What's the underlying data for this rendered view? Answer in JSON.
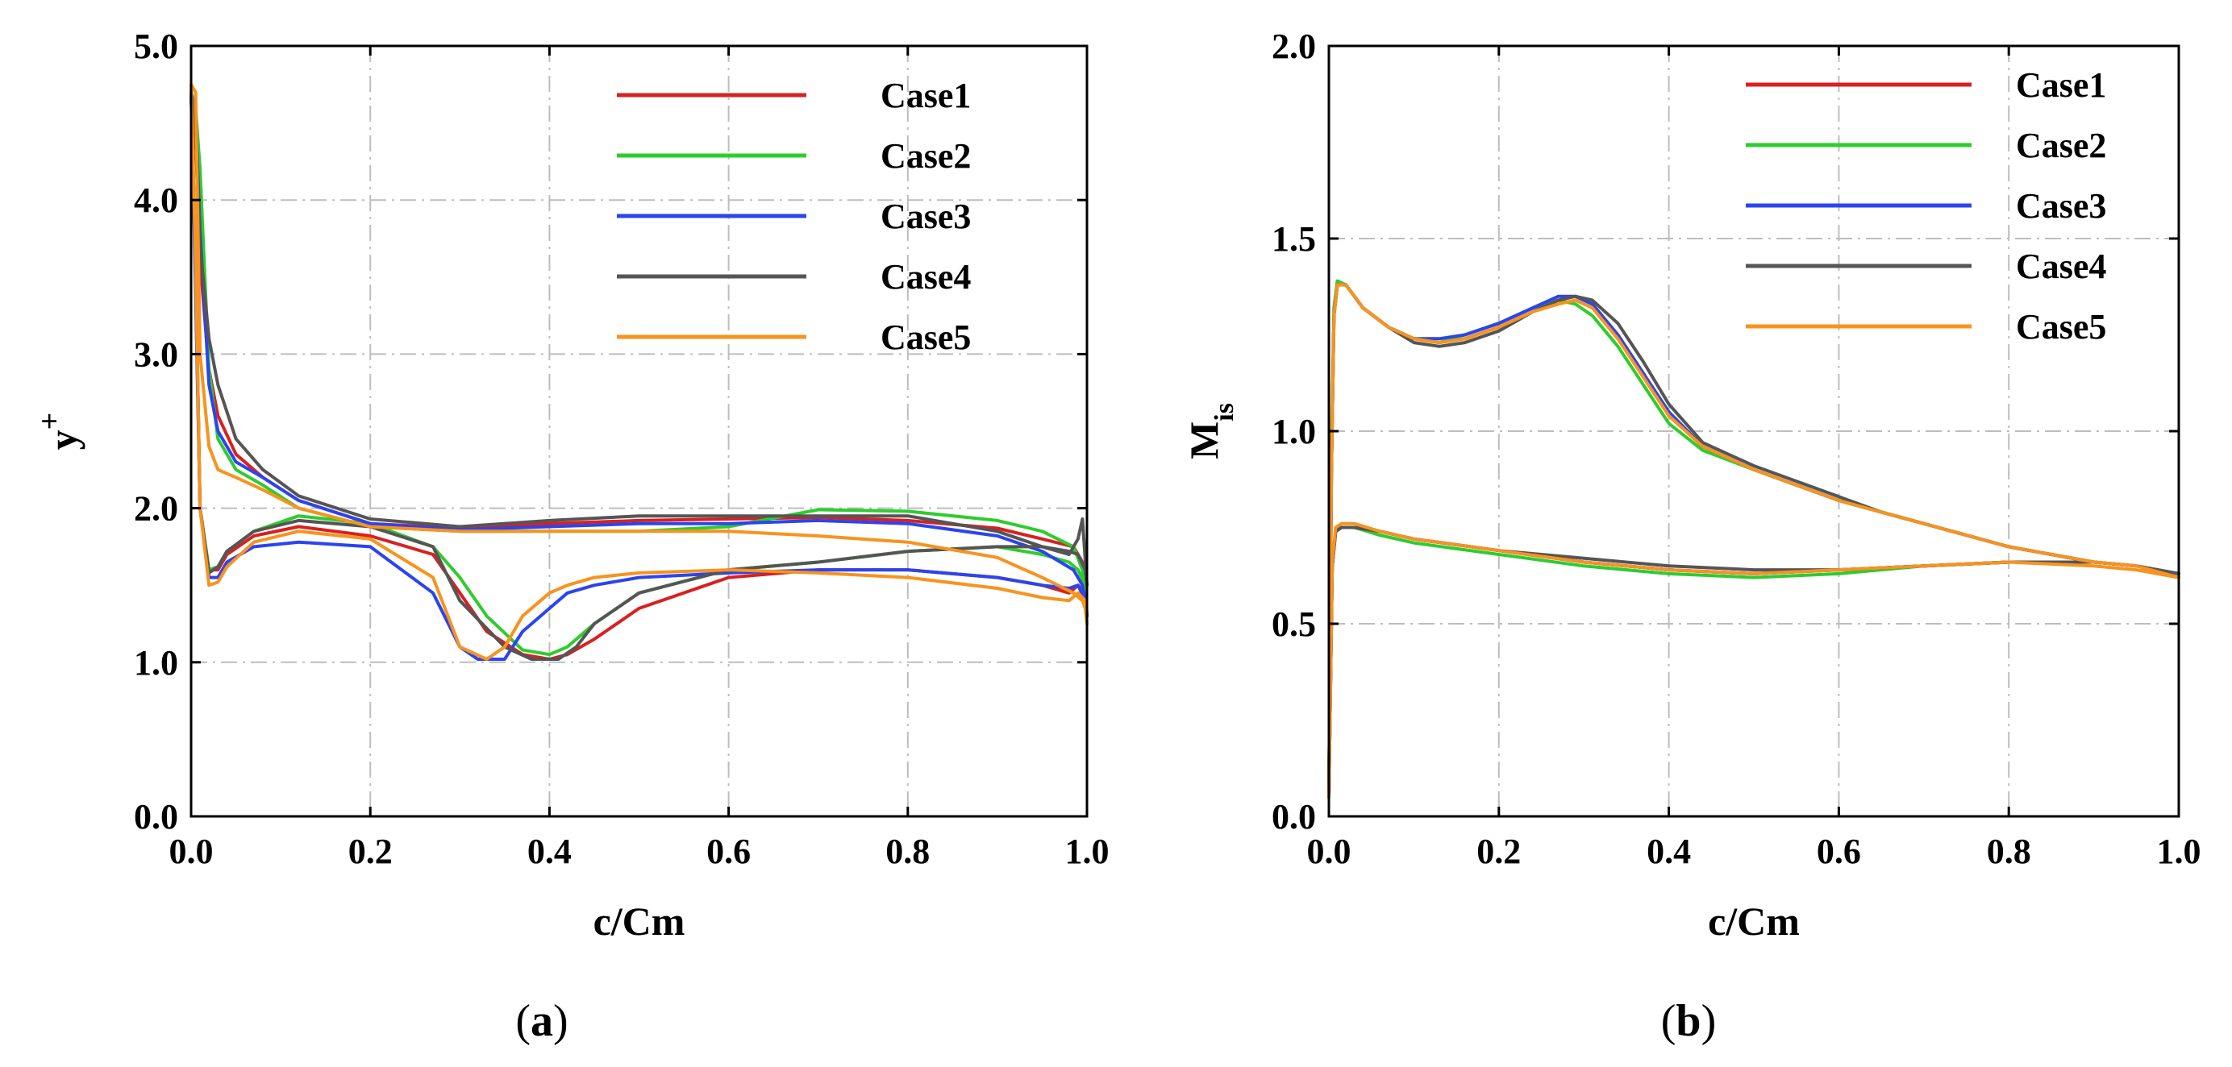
{
  "chart_data": [
    {
      "type": "line",
      "panel_label": "a",
      "xlabel": "c/Cm",
      "ylabel": "y",
      "ylabel_superscript": "+",
      "xlim": [
        0.0,
        1.0
      ],
      "ylim": [
        0.0,
        5.0
      ],
      "xticks": [
        "0.0",
        "0.2",
        "0.4",
        "0.6",
        "0.8",
        "1.0"
      ],
      "yticks": [
        "0.0",
        "1.0",
        "2.0",
        "3.0",
        "4.0",
        "5.0"
      ],
      "grid": true,
      "legend_position": "top-right",
      "series": [
        {
          "name": "Case1",
          "color": "#d92020",
          "x": [
            0.0,
            0.005,
            0.01,
            0.02,
            0.03,
            0.05,
            0.08,
            0.12,
            0.2,
            0.3,
            0.4,
            0.5,
            0.6,
            0.7,
            0.8,
            0.9,
            0.95,
            0.985,
            0.995,
            0.998,
            1.0,
            0.998,
            0.99,
            0.98,
            0.95,
            0.9,
            0.8,
            0.7,
            0.6,
            0.5,
            0.45,
            0.42,
            0.4,
            0.37,
            0.33,
            0.3,
            0.27,
            0.2,
            0.12,
            0.07,
            0.04,
            0.03,
            0.02,
            0.01,
            0.005,
            0.0
          ],
          "y": [
            4.7,
            4.4,
            3.6,
            2.9,
            2.6,
            2.35,
            2.2,
            2.05,
            1.9,
            1.87,
            1.9,
            1.92,
            1.93,
            1.94,
            1.92,
            1.87,
            1.8,
            1.75,
            1.65,
            1.5,
            1.3,
            1.45,
            1.5,
            1.45,
            1.5,
            1.55,
            1.6,
            1.6,
            1.55,
            1.35,
            1.15,
            1.05,
            1.02,
            1.05,
            1.2,
            1.45,
            1.7,
            1.82,
            1.88,
            1.82,
            1.7,
            1.6,
            1.6,
            2.0,
            3.5,
            4.7
          ]
        },
        {
          "name": "Case2",
          "color": "#2ecc2e",
          "x": [
            0.0,
            0.005,
            0.01,
            0.02,
            0.03,
            0.05,
            0.08,
            0.12,
            0.2,
            0.3,
            0.4,
            0.5,
            0.6,
            0.7,
            0.8,
            0.9,
            0.95,
            0.985,
            0.995,
            0.998,
            1.0,
            0.998,
            0.99,
            0.98,
            0.95,
            0.9,
            0.8,
            0.7,
            0.6,
            0.5,
            0.45,
            0.42,
            0.4,
            0.37,
            0.33,
            0.3,
            0.27,
            0.2,
            0.12,
            0.07,
            0.04,
            0.03,
            0.02,
            0.01,
            0.005,
            0.0
          ],
          "y": [
            4.7,
            4.6,
            4.2,
            2.9,
            2.45,
            2.25,
            2.15,
            2.0,
            1.88,
            1.85,
            1.85,
            1.85,
            1.88,
            1.99,
            1.98,
            1.92,
            1.85,
            1.75,
            1.6,
            1.45,
            1.3,
            1.5,
            1.6,
            1.65,
            1.7,
            1.75,
            1.72,
            1.65,
            1.6,
            1.45,
            1.25,
            1.1,
            1.05,
            1.08,
            1.3,
            1.55,
            1.75,
            1.9,
            1.95,
            1.85,
            1.72,
            1.62,
            1.6,
            2.0,
            3.6,
            4.7
          ]
        },
        {
          "name": "Case3",
          "color": "#2b44f0",
          "x": [
            0.0,
            0.005,
            0.01,
            0.02,
            0.03,
            0.05,
            0.08,
            0.12,
            0.2,
            0.3,
            0.4,
            0.5,
            0.6,
            0.7,
            0.8,
            0.9,
            0.95,
            0.985,
            0.995,
            0.998,
            1.0,
            0.998,
            0.99,
            0.98,
            0.95,
            0.9,
            0.8,
            0.7,
            0.6,
            0.5,
            0.45,
            0.42,
            0.4,
            0.37,
            0.35,
            0.32,
            0.3,
            0.27,
            0.2,
            0.12,
            0.07,
            0.04,
            0.03,
            0.02,
            0.01,
            0.005,
            0.0
          ],
          "y": [
            4.7,
            4.55,
            3.8,
            2.8,
            2.5,
            2.3,
            2.2,
            2.05,
            1.9,
            1.86,
            1.88,
            1.9,
            1.9,
            1.92,
            1.9,
            1.82,
            1.72,
            1.6,
            1.5,
            1.4,
            1.3,
            1.4,
            1.5,
            1.48,
            1.5,
            1.55,
            1.6,
            1.6,
            1.58,
            1.55,
            1.5,
            1.45,
            1.35,
            1.2,
            1.02,
            1.02,
            1.1,
            1.45,
            1.75,
            1.78,
            1.75,
            1.65,
            1.55,
            1.55,
            2.0,
            3.4,
            4.7
          ]
        },
        {
          "name": "Case4",
          "color": "#555555",
          "x": [
            0.0,
            0.005,
            0.01,
            0.02,
            0.03,
            0.05,
            0.08,
            0.12,
            0.2,
            0.3,
            0.4,
            0.5,
            0.6,
            0.7,
            0.8,
            0.9,
            0.95,
            0.98,
            0.99,
            0.995,
            1.0,
            0.998,
            0.99,
            0.98,
            0.95,
            0.9,
            0.8,
            0.7,
            0.6,
            0.5,
            0.45,
            0.43,
            0.41,
            0.38,
            0.35,
            0.3,
            0.27,
            0.2,
            0.12,
            0.07,
            0.04,
            0.03,
            0.02,
            0.01,
            0.005,
            0.0
          ],
          "y": [
            4.7,
            4.5,
            3.7,
            3.1,
            2.8,
            2.45,
            2.25,
            2.08,
            1.93,
            1.88,
            1.92,
            1.95,
            1.95,
            1.95,
            1.95,
            1.85,
            1.75,
            1.7,
            1.8,
            1.93,
            1.5,
            1.6,
            1.7,
            1.72,
            1.75,
            1.75,
            1.72,
            1.65,
            1.6,
            1.45,
            1.25,
            1.1,
            1.02,
            1.02,
            1.1,
            1.4,
            1.75,
            1.88,
            1.92,
            1.85,
            1.72,
            1.62,
            1.58,
            2.0,
            3.6,
            4.7
          ]
        },
        {
          "name": "Case5",
          "color": "#f7931e",
          "x": [
            0.0,
            0.005,
            0.01,
            0.02,
            0.03,
            0.05,
            0.08,
            0.12,
            0.2,
            0.3,
            0.4,
            0.5,
            0.6,
            0.7,
            0.8,
            0.9,
            0.95,
            0.985,
            0.995,
            0.998,
            1.0,
            0.998,
            0.99,
            0.98,
            0.95,
            0.9,
            0.8,
            0.7,
            0.6,
            0.5,
            0.45,
            0.42,
            0.4,
            0.37,
            0.35,
            0.33,
            0.3,
            0.27,
            0.2,
            0.12,
            0.07,
            0.04,
            0.03,
            0.02,
            0.01,
            0.005,
            0.0
          ],
          "y": [
            4.75,
            4.7,
            3.0,
            2.4,
            2.25,
            2.2,
            2.12,
            2.0,
            1.88,
            1.85,
            1.85,
            1.85,
            1.85,
            1.82,
            1.78,
            1.68,
            1.55,
            1.45,
            1.4,
            1.35,
            1.25,
            1.4,
            1.45,
            1.4,
            1.42,
            1.48,
            1.55,
            1.58,
            1.6,
            1.58,
            1.55,
            1.5,
            1.45,
            1.3,
            1.1,
            1.02,
            1.1,
            1.55,
            1.8,
            1.85,
            1.78,
            1.62,
            1.52,
            1.5,
            2.0,
            3.6,
            4.75
          ]
        }
      ]
    },
    {
      "type": "line",
      "panel_label": "b",
      "xlabel": "c/Cm",
      "ylabel": "M",
      "ylabel_subscript": "is",
      "xlim": [
        0.0,
        1.0
      ],
      "ylim": [
        0.0,
        2.0
      ],
      "xticks": [
        "0.0",
        "0.2",
        "0.4",
        "0.6",
        "0.8",
        "1.0"
      ],
      "yticks": [
        "0.0",
        "0.5",
        "1.0",
        "1.5",
        "2.0"
      ],
      "grid": true,
      "legend_position": "top-right",
      "series": [
        {
          "name": "Case1",
          "color": "#d92020",
          "x": [
            0.0,
            0.003,
            0.006,
            0.01,
            0.02,
            0.04,
            0.07,
            0.1,
            0.13,
            0.16,
            0.2,
            0.24,
            0.27,
            0.29,
            0.31,
            0.34,
            0.37,
            0.4,
            0.44,
            0.5,
            0.55,
            0.6,
            0.65,
            0.7,
            0.75,
            0.8,
            0.85,
            0.9,
            0.95,
            1.0,
            0.95,
            0.9,
            0.8,
            0.7,
            0.6,
            0.5,
            0.4,
            0.3,
            0.2,
            0.1,
            0.06,
            0.03,
            0.015,
            0.008,
            0.004,
            0.0
          ],
          "y": [
            0.05,
            0.9,
            1.3,
            1.38,
            1.38,
            1.32,
            1.27,
            1.24,
            1.23,
            1.24,
            1.27,
            1.31,
            1.34,
            1.35,
            1.33,
            1.25,
            1.15,
            1.04,
            0.96,
            0.9,
            0.86,
            0.82,
            0.79,
            0.76,
            0.73,
            0.7,
            0.68,
            0.66,
            0.65,
            0.63,
            0.65,
            0.66,
            0.66,
            0.65,
            0.64,
            0.63,
            0.64,
            0.66,
            0.69,
            0.72,
            0.74,
            0.75,
            0.75,
            0.74,
            0.65,
            0.05
          ]
        },
        {
          "name": "Case2",
          "color": "#2ecc2e",
          "x": [
            0.0,
            0.003,
            0.006,
            0.01,
            0.02,
            0.04,
            0.07,
            0.1,
            0.13,
            0.16,
            0.2,
            0.24,
            0.27,
            0.29,
            0.31,
            0.34,
            0.37,
            0.4,
            0.44,
            0.5,
            0.55,
            0.6,
            0.65,
            0.7,
            0.75,
            0.8,
            0.85,
            0.9,
            0.95,
            1.0,
            0.95,
            0.9,
            0.8,
            0.7,
            0.6,
            0.5,
            0.4,
            0.3,
            0.2,
            0.1,
            0.06,
            0.03,
            0.015,
            0.008,
            0.004,
            0.0
          ],
          "y": [
            0.05,
            0.95,
            1.32,
            1.39,
            1.38,
            1.32,
            1.27,
            1.24,
            1.23,
            1.25,
            1.28,
            1.32,
            1.34,
            1.33,
            1.3,
            1.22,
            1.12,
            1.02,
            0.95,
            0.9,
            0.86,
            0.82,
            0.79,
            0.76,
            0.73,
            0.7,
            0.68,
            0.66,
            0.65,
            0.63,
            0.65,
            0.66,
            0.66,
            0.65,
            0.63,
            0.62,
            0.63,
            0.65,
            0.68,
            0.71,
            0.73,
            0.75,
            0.75,
            0.74,
            0.66,
            0.05
          ]
        },
        {
          "name": "Case3",
          "color": "#2b44f0",
          "x": [
            0.0,
            0.003,
            0.006,
            0.01,
            0.02,
            0.04,
            0.07,
            0.1,
            0.13,
            0.16,
            0.2,
            0.24,
            0.27,
            0.29,
            0.31,
            0.34,
            0.37,
            0.4,
            0.44,
            0.5,
            0.55,
            0.6,
            0.65,
            0.7,
            0.75,
            0.8,
            0.85,
            0.9,
            0.95,
            1.0,
            0.95,
            0.9,
            0.8,
            0.7,
            0.6,
            0.5,
            0.4,
            0.3,
            0.2,
            0.1,
            0.06,
            0.03,
            0.015,
            0.008,
            0.004,
            0.0
          ],
          "y": [
            0.05,
            0.9,
            1.3,
            1.38,
            1.38,
            1.32,
            1.27,
            1.24,
            1.24,
            1.25,
            1.28,
            1.32,
            1.35,
            1.35,
            1.33,
            1.25,
            1.15,
            1.05,
            0.96,
            0.9,
            0.86,
            0.82,
            0.79,
            0.76,
            0.73,
            0.7,
            0.68,
            0.66,
            0.65,
            0.63,
            0.65,
            0.66,
            0.66,
            0.65,
            0.64,
            0.63,
            0.64,
            0.66,
            0.69,
            0.72,
            0.74,
            0.75,
            0.75,
            0.74,
            0.65,
            0.05
          ]
        },
        {
          "name": "Case4",
          "color": "#555555",
          "x": [
            0.0,
            0.003,
            0.006,
            0.01,
            0.02,
            0.04,
            0.07,
            0.1,
            0.13,
            0.16,
            0.2,
            0.24,
            0.27,
            0.29,
            0.31,
            0.34,
            0.37,
            0.4,
            0.44,
            0.5,
            0.55,
            0.6,
            0.65,
            0.7,
            0.75,
            0.8,
            0.85,
            0.9,
            0.95,
            1.0,
            0.95,
            0.9,
            0.8,
            0.7,
            0.6,
            0.5,
            0.4,
            0.3,
            0.2,
            0.1,
            0.06,
            0.03,
            0.015,
            0.008,
            0.004,
            0.0
          ],
          "y": [
            0.05,
            0.9,
            1.3,
            1.38,
            1.38,
            1.32,
            1.27,
            1.23,
            1.22,
            1.23,
            1.26,
            1.31,
            1.34,
            1.35,
            1.34,
            1.28,
            1.18,
            1.07,
            0.97,
            0.91,
            0.87,
            0.83,
            0.79,
            0.76,
            0.73,
            0.7,
            0.68,
            0.66,
            0.65,
            0.63,
            0.65,
            0.66,
            0.66,
            0.65,
            0.64,
            0.64,
            0.65,
            0.67,
            0.69,
            0.72,
            0.74,
            0.75,
            0.75,
            0.74,
            0.65,
            0.05
          ]
        },
        {
          "name": "Case5",
          "color": "#f7931e",
          "x": [
            0.0,
            0.003,
            0.006,
            0.01,
            0.02,
            0.04,
            0.07,
            0.1,
            0.13,
            0.16,
            0.2,
            0.24,
            0.27,
            0.29,
            0.31,
            0.34,
            0.37,
            0.4,
            0.44,
            0.5,
            0.55,
            0.6,
            0.65,
            0.7,
            0.75,
            0.8,
            0.85,
            0.9,
            0.95,
            1.0,
            0.95,
            0.9,
            0.8,
            0.7,
            0.6,
            0.5,
            0.4,
            0.3,
            0.2,
            0.1,
            0.06,
            0.03,
            0.015,
            0.008,
            0.004,
            0.0
          ],
          "y": [
            0.05,
            0.9,
            1.3,
            1.38,
            1.38,
            1.32,
            1.27,
            1.24,
            1.23,
            1.24,
            1.27,
            1.31,
            1.33,
            1.34,
            1.32,
            1.24,
            1.14,
            1.04,
            0.96,
            0.9,
            0.86,
            0.82,
            0.79,
            0.76,
            0.73,
            0.7,
            0.68,
            0.66,
            0.65,
            0.62,
            0.64,
            0.65,
            0.66,
            0.65,
            0.64,
            0.63,
            0.64,
            0.66,
            0.69,
            0.72,
            0.74,
            0.76,
            0.76,
            0.75,
            0.66,
            0.05
          ]
        }
      ]
    }
  ]
}
